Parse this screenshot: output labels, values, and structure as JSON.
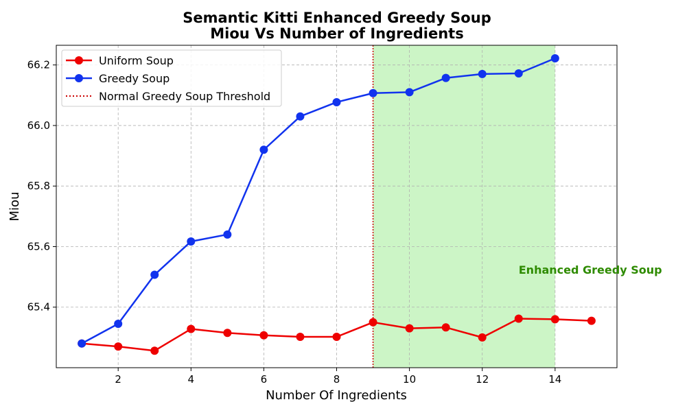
{
  "chart_data": {
    "type": "line",
    "title_line1": "Semantic Kitti Enhanced Greedy Soup",
    "title_line2": "Miou Vs Number of Ingredients",
    "xlabel": "Number Of Ingredients",
    "ylabel": "Miou",
    "xlim": [
      0.3,
      15.7
    ],
    "ylim": [
      65.2,
      66.265
    ],
    "xticks": [
      2,
      4,
      6,
      8,
      10,
      12,
      14
    ],
    "yticks": [
      65.4,
      65.6,
      65.8,
      66.0,
      66.2
    ],
    "ytick_labels": [
      "65.4",
      "65.6",
      "65.8",
      "66.0",
      "66.2"
    ],
    "grid": true,
    "legend_position": "top-left",
    "series": [
      {
        "name": "Uniform Soup",
        "color": "#ee0000",
        "x": [
          1,
          2,
          3,
          4,
          5,
          6,
          7,
          8,
          9,
          10,
          11,
          12,
          13,
          14,
          15
        ],
        "values": [
          65.28,
          65.27,
          65.256,
          65.328,
          65.315,
          65.307,
          65.302,
          65.302,
          65.35,
          65.33,
          65.333,
          65.3,
          65.362,
          65.36,
          65.355
        ]
      },
      {
        "name": "Greedy Soup",
        "color": "#1133ee",
        "x": [
          1,
          2,
          3,
          4,
          5,
          6,
          7,
          8,
          9,
          10,
          11,
          12,
          13,
          14
        ],
        "values": [
          65.28,
          65.345,
          65.507,
          65.617,
          65.64,
          65.92,
          66.03,
          66.077,
          66.107,
          66.11,
          66.157,
          66.17,
          66.172,
          66.222
        ]
      }
    ],
    "threshold": {
      "name": "Normal Greedy Soup Threshold",
      "x": 9,
      "color": "#cc0000"
    },
    "shaded_region": {
      "x_start": 9,
      "x_end": 14,
      "color": "#ccf5c6",
      "label": "Enhanced Greedy Soup",
      "label_color": "#2e8b00",
      "label_x": 13,
      "label_y": 65.51
    }
  }
}
